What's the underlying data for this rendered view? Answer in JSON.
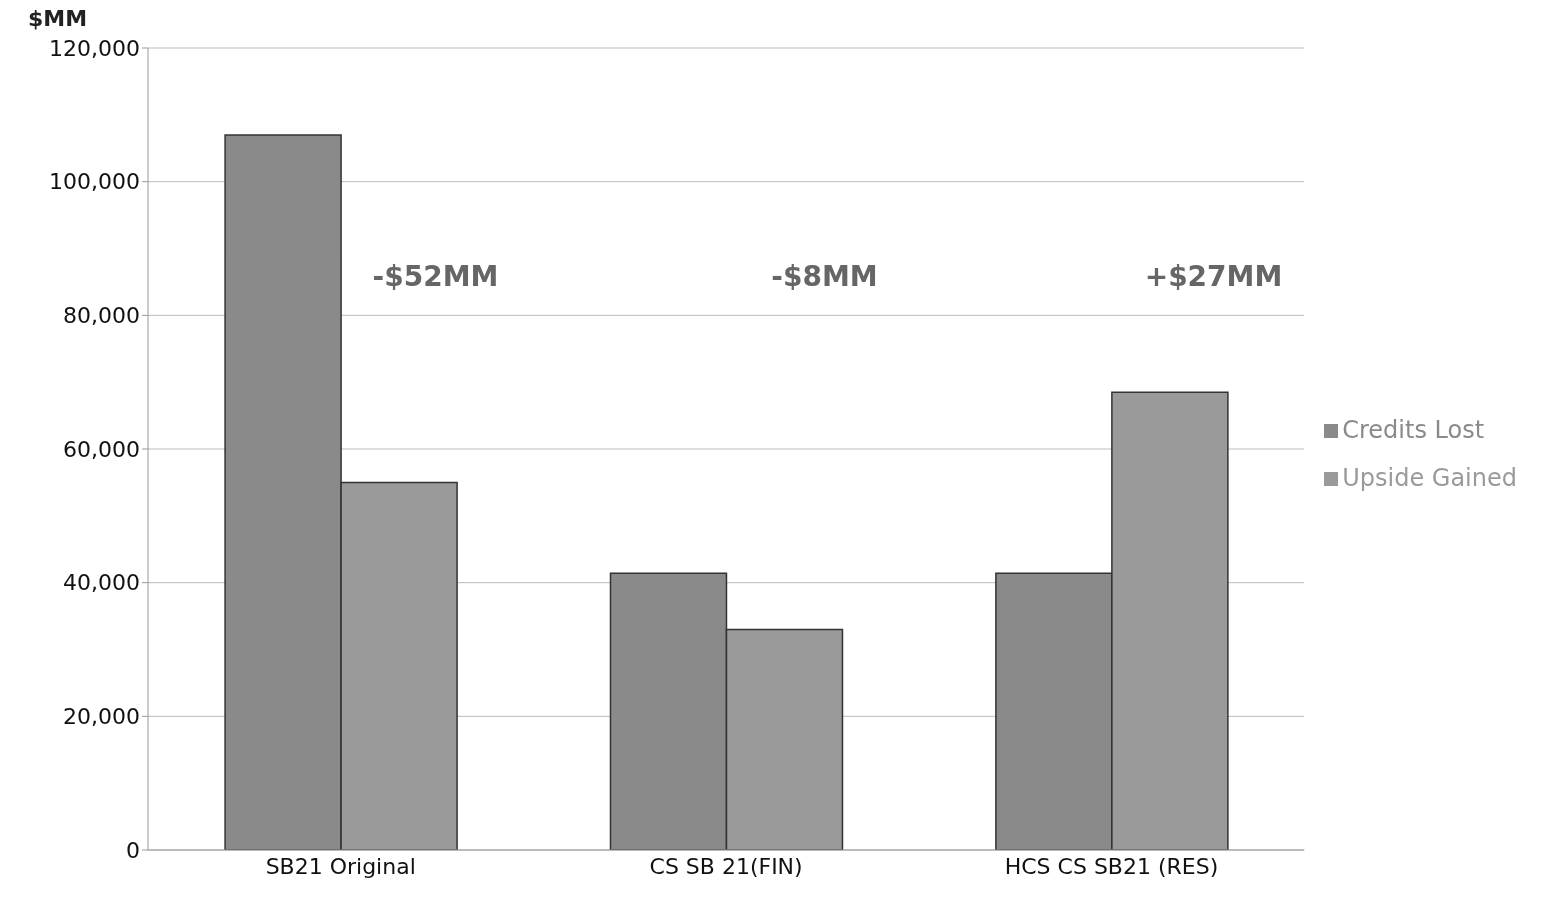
{
  "chart_data": {
    "type": "bar",
    "ylabel": "$MM",
    "categories": [
      "SB21 Original",
      "CS SB 21(FIN)",
      "HCS CS SB21 (RES)"
    ],
    "series": [
      {
        "name": "Credits Lost",
        "color": "#8a8a8a",
        "values": [
          107000,
          41400,
          41400
        ]
      },
      {
        "name": "Upside Gained",
        "color": "#9a9a9a",
        "values": [
          55000,
          33000,
          68500
        ]
      }
    ],
    "ylim": [
      0,
      120000
    ],
    "yticks": [
      {
        "value": 0,
        "label": "0"
      },
      {
        "value": 20000,
        "label": "20,000"
      },
      {
        "value": 40000,
        "label": "40,000"
      },
      {
        "value": 60000,
        "label": "60,000"
      },
      {
        "value": 80000,
        "label": "80,000"
      },
      {
        "value": 100000,
        "label": "100,000"
      },
      {
        "value": 120000,
        "label": "120,000"
      }
    ],
    "grid": "y",
    "legend": "right",
    "annotations": [
      "-$52MM",
      "-$8MM",
      "+$27MM"
    ]
  }
}
